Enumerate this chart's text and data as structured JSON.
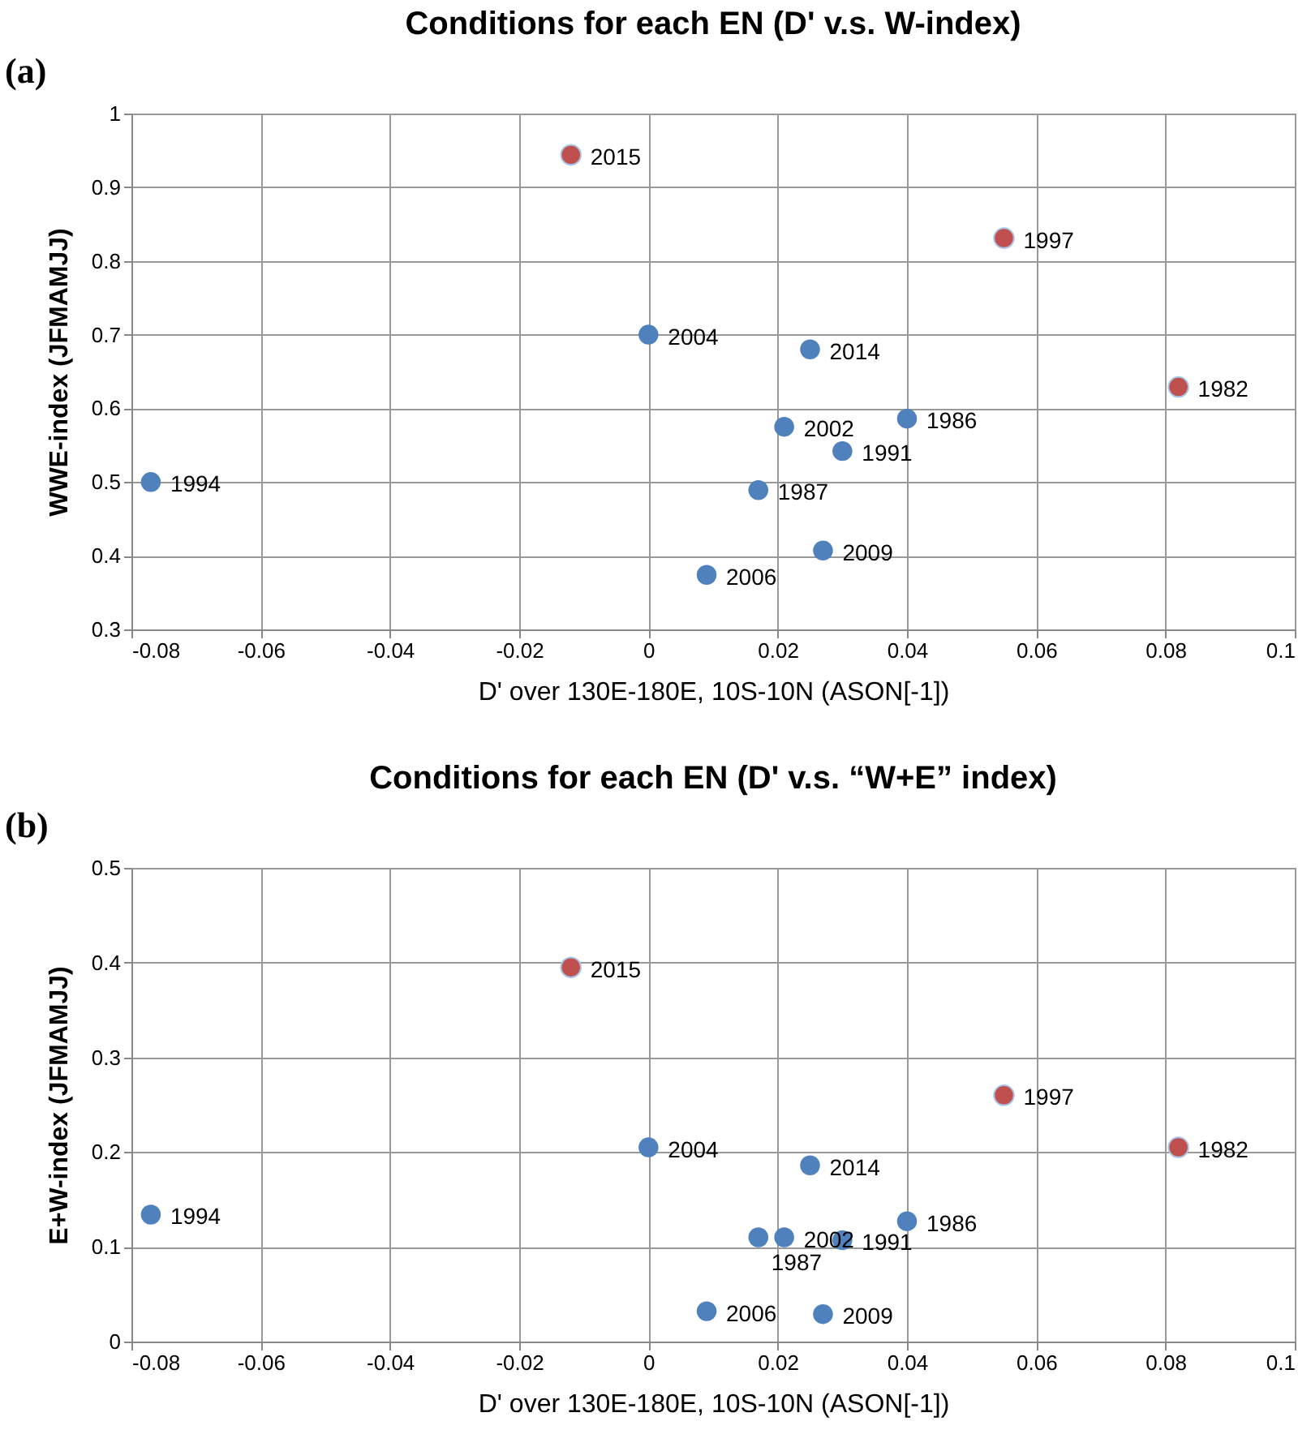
{
  "chart_data": [
    {
      "type": "scatter",
      "title": "Conditions for each EN (D' v.s. W-index)",
      "xlabel": "D' over 130E-180E, 10S-10N (ASON[-1])",
      "ylabel": "WWE-index (JFMAMJJ)",
      "series": [
        {
          "color": "#4f81bd",
          "x": [
            -0.077,
            0.0,
            0.025,
            0.021,
            0.04,
            0.03,
            0.017,
            0.027,
            0.009
          ],
          "values": [
            0.5,
            0.7,
            0.68,
            0.575,
            0.586,
            0.542,
            0.489,
            0.407,
            0.374
          ]
        },
        {
          "color": "#c0504d",
          "x": [
            -0.012,
            0.055,
            0.082
          ],
          "values": [
            0.944,
            0.831,
            0.629
          ]
        }
      ],
      "xlim": [
        -0.08,
        0.1
      ],
      "xticks": [
        -0.08,
        -0.06,
        -0.04,
        -0.02,
        0,
        0.02,
        0.04,
        0.06,
        0.08,
        0.1
      ],
      "ylim": [
        0.3,
        1
      ],
      "yticks": [
        0.3,
        0.4,
        0.5,
        0.6,
        0.7,
        0.8,
        0.9,
        1
      ],
      "grid": true,
      "marker": "circle",
      "annotations": [
        "(a)",
        {
          "text": "2015",
          "x": -0.012,
          "y": 0.944
        },
        {
          "text": "1997",
          "x": 0.055,
          "y": 0.831
        },
        {
          "text": "2004",
          "x": 0.0,
          "y": 0.7
        },
        {
          "text": "2014",
          "x": 0.025,
          "y": 0.68
        },
        {
          "text": "1982",
          "x": 0.082,
          "y": 0.629
        },
        {
          "text": "1986",
          "x": 0.04,
          "y": 0.586
        },
        {
          "text": "2002",
          "x": 0.021,
          "y": 0.575
        },
        {
          "text": "1991",
          "x": 0.03,
          "y": 0.542
        },
        {
          "text": "1994",
          "x": -0.077,
          "y": 0.5
        },
        {
          "text": "1987",
          "x": 0.017,
          "y": 0.489
        },
        {
          "text": "2009",
          "x": 0.027,
          "y": 0.407
        },
        {
          "text": "2006",
          "x": 0.009,
          "y": 0.374
        }
      ]
    },
    {
      "type": "scatter",
      "title": "Conditions for each EN (D' v.s. “W+E” index)",
      "xlabel": "D' over 130E-180E, 10S-10N (ASON[-1])",
      "ylabel": "E+W-index (JFMAMJJ)",
      "series": [
        {
          "color": "#4f81bd",
          "x": [
            -0.077,
            0.0,
            0.025,
            0.021,
            0.04,
            0.03,
            0.017,
            0.027,
            0.009
          ],
          "values": [
            0.134,
            0.205,
            0.186,
            0.11,
            0.127,
            0.107,
            0.11,
            0.029,
            0.032
          ]
        },
        {
          "color": "#c0504d",
          "x": [
            -0.012,
            0.055,
            0.082
          ],
          "values": [
            0.395,
            0.26,
            0.205
          ]
        }
      ],
      "xlim": [
        -0.08,
        0.1
      ],
      "xticks": [
        -0.08,
        -0.06,
        -0.04,
        -0.02,
        0,
        0.02,
        0.04,
        0.06,
        0.08,
        0.1
      ],
      "ylim": [
        0,
        0.5
      ],
      "yticks": [
        0,
        0.1,
        0.2,
        0.3,
        0.4,
        0.5
      ],
      "grid": true,
      "marker": "circle",
      "annotations": [
        "(b)",
        {
          "text": "2015",
          "x": -0.012,
          "y": 0.395
        },
        {
          "text": "1997",
          "x": 0.055,
          "y": 0.26
        },
        {
          "text": "2004",
          "x": 0.0,
          "y": 0.205
        },
        {
          "text": "1982",
          "x": 0.082,
          "y": 0.205
        },
        {
          "text": "2014",
          "x": 0.025,
          "y": 0.186
        },
        {
          "text": "1994",
          "x": -0.077,
          "y": 0.134
        },
        {
          "text": "1986",
          "x": 0.04,
          "y": 0.127
        },
        {
          "text": "2002",
          "x": 0.021,
          "y": 0.11
        },
        {
          "text": "1987",
          "x": 0.017,
          "y": 0.11
        },
        {
          "text": "1991",
          "x": 0.03,
          "y": 0.107
        },
        {
          "text": "2006",
          "x": 0.009,
          "y": 0.032
        },
        {
          "text": "2009",
          "x": 0.027,
          "y": 0.029
        }
      ]
    }
  ]
}
